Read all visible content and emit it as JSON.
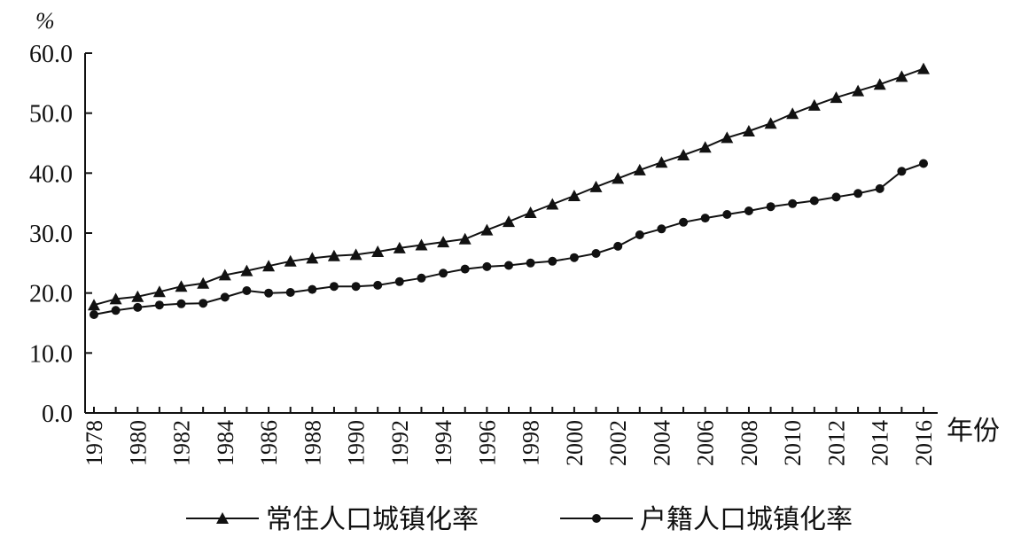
{
  "chart_data": {
    "type": "line",
    "y_unit": "%",
    "xlabel": "年份",
    "ylabel": "",
    "ylim": [
      0,
      60
    ],
    "y_ticks": [
      "0.0",
      "10.0",
      "20.0",
      "30.0",
      "40.0",
      "50.0",
      "60.0"
    ],
    "x_tick_labels": [
      "1978",
      "1980",
      "1982",
      "1984",
      "1986",
      "1988",
      "1990",
      "1992",
      "1994",
      "1996",
      "1998",
      "2000",
      "2002",
      "2004",
      "2006",
      "2008",
      "2010",
      "2012",
      "2014",
      "2016"
    ],
    "x": [
      1978,
      1979,
      1980,
      1981,
      1982,
      1983,
      1984,
      1985,
      1986,
      1987,
      1988,
      1989,
      1990,
      1991,
      1992,
      1993,
      1994,
      1995,
      1996,
      1997,
      1998,
      1999,
      2000,
      2001,
      2002,
      2003,
      2004,
      2005,
      2006,
      2007,
      2008,
      2009,
      2010,
      2011,
      2012,
      2013,
      2014,
      2015,
      2016
    ],
    "legend_position": "bottom",
    "series": [
      {
        "name": "常住人口城镇化率",
        "marker": "triangle",
        "values": [
          18.0,
          19.0,
          19.4,
          20.2,
          21.1,
          21.6,
          23.0,
          23.7,
          24.5,
          25.3,
          25.8,
          26.2,
          26.4,
          26.9,
          27.5,
          28.0,
          28.5,
          29.0,
          30.5,
          31.9,
          33.4,
          34.8,
          36.2,
          37.7,
          39.1,
          40.5,
          41.8,
          43.0,
          44.3,
          45.9,
          47.0,
          48.3,
          49.9,
          51.3,
          52.6,
          53.7,
          54.8,
          56.1,
          57.4
        ]
      },
      {
        "name": "户籍人口城镇化率",
        "marker": "circle",
        "values": [
          16.4,
          17.1,
          17.6,
          18.0,
          18.2,
          18.3,
          19.3,
          20.4,
          20.0,
          20.1,
          20.6,
          21.1,
          21.1,
          21.3,
          21.9,
          22.5,
          23.3,
          24.0,
          24.4,
          24.6,
          25.0,
          25.3,
          25.9,
          26.6,
          27.8,
          29.7,
          30.7,
          31.8,
          32.5,
          33.1,
          33.7,
          34.4,
          34.9,
          35.4,
          36.0,
          36.6,
          37.4,
          40.3,
          41.6
        ]
      }
    ]
  }
}
